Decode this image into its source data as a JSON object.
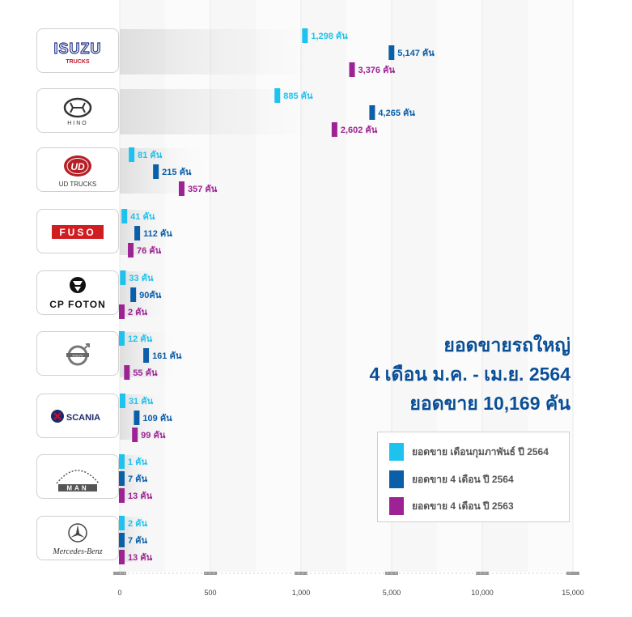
{
  "chart_data": {
    "type": "bar",
    "orientation": "horizontal",
    "title": "ยอดขายรถใหญ่",
    "subtitle": "4 เดือน ม.ค. - เม.ย. 2564",
    "total_text": "ยอดขาย 10,169 คัน",
    "categories": [
      "ISUZU",
      "HINO",
      "UD TRUCKS",
      "FUSO",
      "CP FOTON",
      "VOLVO",
      "SCANIA",
      "MAN",
      "Mercedes Benz"
    ],
    "series": [
      {
        "name": "ยอดขาย เดือนกุมภาพันธ์ ปี 2564",
        "color": "#1ec2ee",
        "values": [
          1298,
          885,
          81,
          41,
          33,
          12,
          31,
          1,
          2
        ],
        "labels": [
          "1,298 คัน",
          "885 คัน",
          "81 คัน",
          "41 คัน",
          "33 คัน",
          "12 คัน",
          "31 คัน",
          "1 คัน",
          "2 คัน"
        ]
      },
      {
        "name": "ยอดขาย 4 เดือน ปี 2564",
        "color": "#0b5ea8",
        "values": [
          5147,
          4265,
          215,
          112,
          90,
          161,
          109,
          7,
          7
        ],
        "labels": [
          "5,147 คัน",
          "4,265 คัน",
          "215 คัน",
          "112 คัน",
          "90คัน",
          "161 คัน",
          "109 คัน",
          "7 คัน",
          "7 คัน"
        ]
      },
      {
        "name": "ยอดขาย 4 เดือน ปี 2563",
        "color": "#9d2394",
        "values": [
          3376,
          2602,
          357,
          76,
          2,
          55,
          99,
          13,
          13
        ],
        "labels": [
          "3,376 คัน",
          "2,602 คัน",
          "357 คัน",
          "76 คัน",
          "2 คัน",
          "55 คัน",
          "99 คัน",
          "13 คัน",
          "13 คัน"
        ]
      }
    ],
    "axis_ticks": [
      0,
      500,
      1000,
      5000,
      10000,
      15000
    ],
    "axis_tick_labels": [
      "0",
      "500",
      "1,000",
      "5,000",
      "10,000",
      "15,000"
    ],
    "xlim": [
      0,
      15000
    ],
    "scale": "piecewise",
    "grid": true,
    "legend_position": "bottom-right"
  },
  "brands": [
    {
      "name": "ISUZU",
      "sub": "TRUCKS"
    },
    {
      "name": "HINO"
    },
    {
      "name": "UD TRUCKS"
    },
    {
      "name": "FUSO"
    },
    {
      "name": "CP FOTON"
    },
    {
      "name": "VOLVO"
    },
    {
      "name": "SCANIA"
    },
    {
      "name": "MAN"
    },
    {
      "name": "Mercedes Benz"
    }
  ]
}
